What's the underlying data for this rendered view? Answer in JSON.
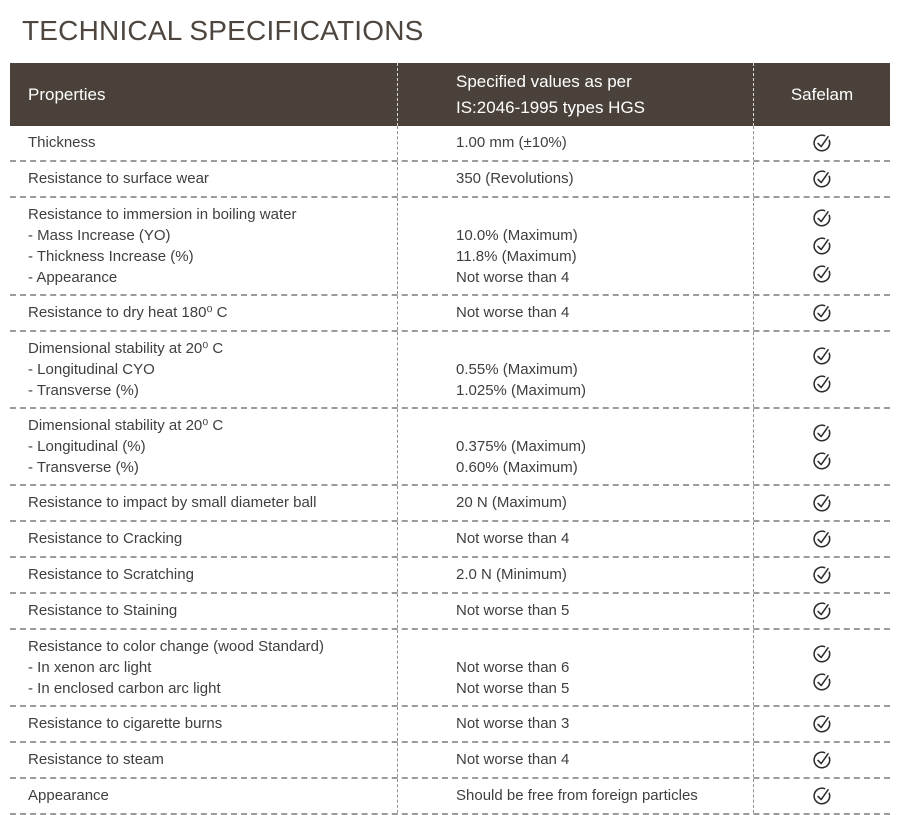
{
  "page_title": "TECHNICAL SPECIFICATIONS",
  "colors": {
    "header_bg": "#4a423a",
    "header_text": "#ffffff",
    "title_text": "#4e463e",
    "body_text": "#3f3f3f",
    "row_divider": "#9b9b9b",
    "column_divider": "#8f8f8f",
    "header_divider": "#d9d6d3",
    "check": "#2d2d2d"
  },
  "icons": {
    "safelam_check": "check-circle-icon"
  },
  "table": {
    "columns": [
      {
        "label": "Properties"
      },
      {
        "label": "Specified values as per IS:2046-1995 types HGS",
        "lines": [
          "Specified values as per",
          "IS:2046-1995 types HGS"
        ]
      },
      {
        "label": "Safelam"
      }
    ],
    "rows": [
      {
        "property": [
          "Thickness"
        ],
        "values": [
          "1.00 mm (±10%)"
        ],
        "checks": 1
      },
      {
        "property": [
          "Resistance to surface wear"
        ],
        "values": [
          "350 (Revolutions)"
        ],
        "checks": 1
      },
      {
        "property": [
          "Resistance to immersion in boiling water",
          "- Mass Increase (YO)",
          "- Thickness Increase (%)",
          "- Appearance"
        ],
        "values": [
          "10.0% (Maximum)",
          "11.8% (Maximum)",
          "Not worse than 4"
        ],
        "checks": 3,
        "value_offset": 1
      },
      {
        "property": [
          "Resistance to dry heat 180⁰ C"
        ],
        "values": [
          "Not worse than 4"
        ],
        "checks": 1
      },
      {
        "property": [
          "Dimensional stability at 20⁰ C",
          "- Longitudinal CYO",
          "- Transverse (%)"
        ],
        "values": [
          "0.55% (Maximum)",
          "1.025% (Maximum)"
        ],
        "checks": 2,
        "value_offset": 1
      },
      {
        "property": [
          "Dimensional stability at 20⁰ C",
          "- Longitudinal (%)",
          "- Transverse (%)"
        ],
        "values": [
          "0.375% (Maximum)",
          "0.60% (Maximum)"
        ],
        "checks": 2,
        "value_offset": 1
      },
      {
        "property": [
          "Resistance to impact by small diameter ball"
        ],
        "values": [
          "20 N (Maximum)"
        ],
        "checks": 1
      },
      {
        "property": [
          "Resistance to Cracking"
        ],
        "values": [
          "Not worse than 4"
        ],
        "checks": 1
      },
      {
        "property": [
          "Resistance to Scratching"
        ],
        "values": [
          "2.0 N (Minimum)"
        ],
        "checks": 1
      },
      {
        "property": [
          "Resistance to Staining"
        ],
        "values": [
          "Not worse than 5"
        ],
        "checks": 1
      },
      {
        "property": [
          "Resistance to color change (wood Standard)",
          "- In xenon arc light",
          "- In enclosed carbon arc light"
        ],
        "values": [
          "Not worse than 6",
          "Not worse than 5"
        ],
        "checks": 2,
        "value_offset": 1
      },
      {
        "property": [
          "Resistance to cigarette burns"
        ],
        "values": [
          "Not worse than 3"
        ],
        "checks": 1
      },
      {
        "property": [
          "Resistance to steam"
        ],
        "values": [
          "Not worse than 4"
        ],
        "checks": 1
      },
      {
        "property": [
          "Appearance"
        ],
        "values": [
          "Should be free from foreign particles"
        ],
        "checks": 1
      }
    ]
  }
}
